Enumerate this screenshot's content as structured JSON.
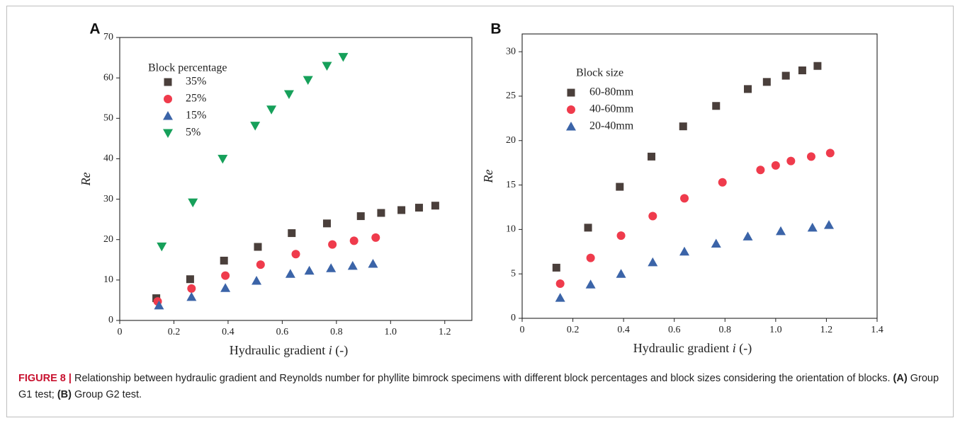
{
  "caption": {
    "figure_label": "FIGURE 8 |",
    "text_1": "Relationship between hydraulic gradient and Reynolds number for phyllite bimrock specimens with different block percentages and block sizes considering the orientation of blocks.",
    "part_a": "(A)",
    "text_2": "Group G1 test;",
    "part_b": "(B)",
    "text_3": "Group G2 test."
  },
  "chart_data": [
    {
      "panel": "A",
      "type": "scatter",
      "xlabel": "Hydraulic gradient",
      "xlabel_var": "i",
      "xlabel_unit": "(-)",
      "ylabel": "Re",
      "xlim": [
        0,
        1.3
      ],
      "ylim": [
        0,
        70
      ],
      "xticks": [
        "0",
        "0.2",
        "0.4",
        "0.6",
        "0.8",
        "1.0",
        "1.2"
      ],
      "yticks": [
        "0",
        "10",
        "20",
        "30",
        "40",
        "50",
        "60",
        "70"
      ],
      "legend_title": "Block percentage",
      "legend_position": "top-left",
      "series": [
        {
          "name": "35%",
          "marker": "square",
          "color": "#4a3f3b",
          "points": [
            [
              0.135,
              5.5
            ],
            [
              0.26,
              10.2
            ],
            [
              0.385,
              14.8
            ],
            [
              0.51,
              18.2
            ],
            [
              0.635,
              21.6
            ],
            [
              0.765,
              24.0
            ],
            [
              0.89,
              25.8
            ],
            [
              0.965,
              26.6
            ],
            [
              1.04,
              27.3
            ],
            [
              1.105,
              27.9
            ],
            [
              1.165,
              28.4
            ]
          ]
        },
        {
          "name": "25%",
          "marker": "circle",
          "color": "#ef3b4c",
          "points": [
            [
              0.14,
              4.7
            ],
            [
              0.265,
              7.9
            ],
            [
              0.39,
              11.1
            ],
            [
              0.52,
              13.8
            ],
            [
              0.65,
              16.4
            ],
            [
              0.785,
              18.8
            ],
            [
              0.865,
              19.7
            ],
            [
              0.945,
              20.5
            ]
          ]
        },
        {
          "name": "15%",
          "marker": "triangle-up",
          "color": "#3b64a8",
          "points": [
            [
              0.145,
              3.7
            ],
            [
              0.265,
              5.8
            ],
            [
              0.39,
              8.0
            ],
            [
              0.505,
              9.8
            ],
            [
              0.63,
              11.5
            ],
            [
              0.7,
              12.3
            ],
            [
              0.78,
              12.9
            ],
            [
              0.86,
              13.5
            ],
            [
              0.935,
              14.0
            ]
          ]
        },
        {
          "name": "5%",
          "marker": "triangle-down",
          "color": "#16a05a",
          "points": [
            [
              0.155,
              18.3
            ],
            [
              0.27,
              29.2
            ],
            [
              0.38,
              40.0
            ],
            [
              0.5,
              48.2
            ],
            [
              0.56,
              52.2
            ],
            [
              0.625,
              56.0
            ],
            [
              0.695,
              59.5
            ],
            [
              0.765,
              63.0
            ],
            [
              0.825,
              65.2
            ]
          ]
        }
      ]
    },
    {
      "panel": "B",
      "type": "scatter",
      "xlabel": "Hydraulic gradient",
      "xlabel_var": "i",
      "xlabel_unit": "(-)",
      "ylabel": "Re",
      "xlim": [
        0,
        1.4
      ],
      "ylim": [
        0,
        32
      ],
      "xticks": [
        "0",
        "0.2",
        "0.4",
        "0.6",
        "0.8",
        "1.0",
        "1.2",
        "1.4"
      ],
      "yticks": [
        "0",
        "5",
        "10",
        "15",
        "20",
        "25",
        "30"
      ],
      "legend_title": "Block size",
      "legend_position": "top-left",
      "series": [
        {
          "name": "60-80mm",
          "marker": "square",
          "color": "#4a3f3b",
          "points": [
            [
              0.135,
              5.7
            ],
            [
              0.26,
              10.2
            ],
            [
              0.385,
              14.8
            ],
            [
              0.51,
              18.2
            ],
            [
              0.635,
              21.6
            ],
            [
              0.765,
              23.9
            ],
            [
              0.89,
              25.8
            ],
            [
              0.965,
              26.6
            ],
            [
              1.04,
              27.3
            ],
            [
              1.105,
              27.9
            ],
            [
              1.165,
              28.4
            ]
          ]
        },
        {
          "name": "40-60mm",
          "marker": "circle",
          "color": "#ef3b4c",
          "points": [
            [
              0.15,
              3.9
            ],
            [
              0.27,
              6.8
            ],
            [
              0.39,
              9.3
            ],
            [
              0.515,
              11.5
            ],
            [
              0.64,
              13.5
            ],
            [
              0.79,
              15.3
            ],
            [
              0.94,
              16.7
            ],
            [
              1.0,
              17.2
            ],
            [
              1.06,
              17.7
            ],
            [
              1.14,
              18.2
            ],
            [
              1.215,
              18.6
            ]
          ]
        },
        {
          "name": "20-40mm",
          "marker": "triangle-up",
          "color": "#3b64a8",
          "points": [
            [
              0.15,
              2.3
            ],
            [
              0.27,
              3.8
            ],
            [
              0.39,
              5.0
            ],
            [
              0.515,
              6.3
            ],
            [
              0.64,
              7.5
            ],
            [
              0.765,
              8.4
            ],
            [
              0.89,
              9.2
            ],
            [
              1.02,
              9.8
            ],
            [
              1.145,
              10.2
            ],
            [
              1.21,
              10.5
            ]
          ]
        }
      ]
    }
  ]
}
